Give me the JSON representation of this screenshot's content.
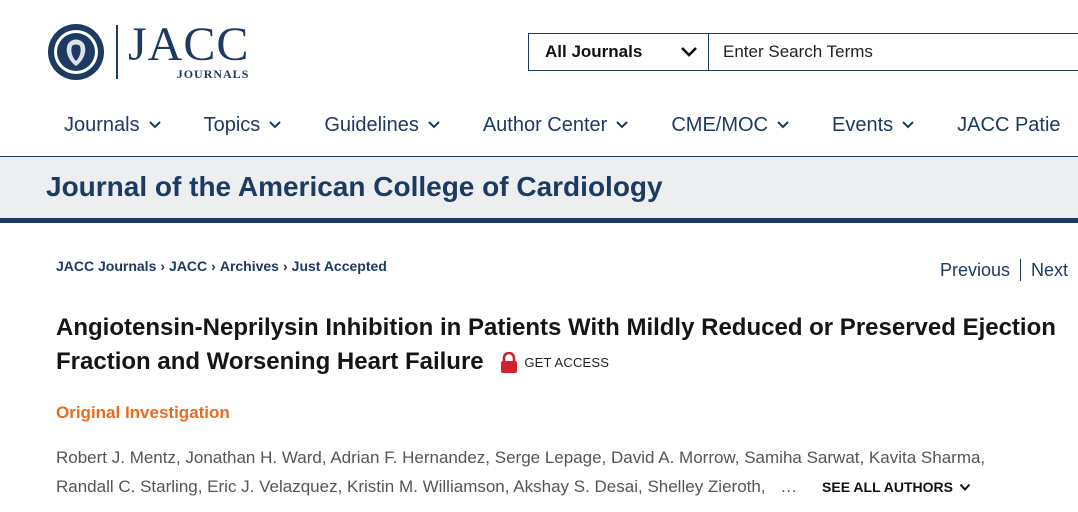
{
  "logo": {
    "word": "JACC",
    "sub": "JOURNALS"
  },
  "search": {
    "journal_select": "All Journals",
    "placeholder": "Enter Search Terms"
  },
  "nav": {
    "items": [
      {
        "label": "Journals",
        "has_dropdown": true
      },
      {
        "label": "Topics",
        "has_dropdown": true
      },
      {
        "label": "Guidelines",
        "has_dropdown": true
      },
      {
        "label": "Author Center",
        "has_dropdown": true
      },
      {
        "label": "CME/MOC",
        "has_dropdown": true
      },
      {
        "label": "Events",
        "has_dropdown": true
      },
      {
        "label": "JACC Patie",
        "has_dropdown": false
      }
    ]
  },
  "journal_title": "Journal of the American College of Cardiology",
  "breadcrumb": [
    "JACC Journals",
    "JACC",
    "Archives",
    "Just Accepted"
  ],
  "breadcrumb_separator": "›",
  "pager": {
    "previous": "Previous",
    "next": "Next"
  },
  "article": {
    "title": "Angiotensin-Neprilysin Inhibition in Patients With Mildly Reduced or Preserved Ejection Fraction and Worsening Heart Failure",
    "access_label": "GET ACCESS",
    "type": "Original Investigation",
    "authors_line1": "Robert J. Mentz, Jonathan H. Ward, Adrian F. Hernandez, Serge Lepage, David A. Morrow, Samiha Sarwat, Kavita Sharma,",
    "authors_line2": "Randall C. Starling, Eric J. Velazquez, Kristin M. Williamson, Akshay S. Desai, Shelley Zieroth,",
    "authors_ellipsis": "…",
    "see_all_label": "SEE ALL AUTHORS"
  },
  "colors": {
    "brand_navy": "#1d3a63",
    "accent_orange": "#e86c1f",
    "lock_red": "#d2202f",
    "band_gray": "#eceef0"
  },
  "icons": {
    "dropdown": "chevron-down-icon",
    "access": "lock-icon",
    "seal": "jacc-seal-logo"
  }
}
